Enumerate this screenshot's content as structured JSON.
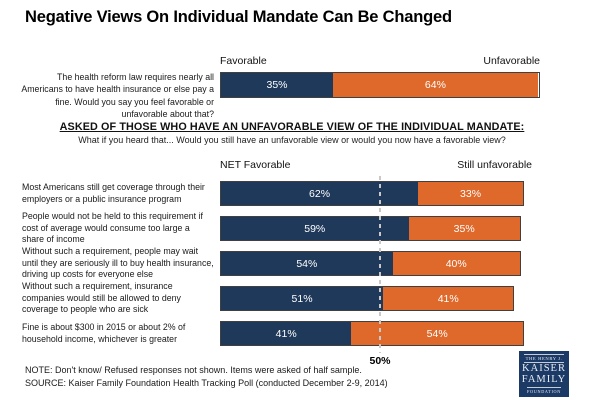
{
  "title": "Negative Views On Individual Mandate Can Be Changed",
  "colors": {
    "navy": "#1f395a",
    "orange": "#df682b",
    "bar_border": "#404040",
    "dash_line": "#c9c9c9",
    "logo_background": "#1b3a66"
  },
  "top_chart": {
    "left_header": "Favorable",
    "right_header": "Unfavorable",
    "question": "The health reform law requires nearly all Americans to have health insurance or else pay a fine. Would you say you feel favorable or unfavorable about that?"
  },
  "section": {
    "heading": "ASKED OF THOSE WHO HAVE AN UNFAVORABLE VIEW OF THE INDIVIDUAL MANDATE:",
    "subheading": "What if you heard that... Would you still have an unfavorable view or would you now have a favorable view?",
    "left_header": "NET Favorable",
    "right_header": "Still unfavorable"
  },
  "notes": {
    "note": "NOTE: Don't know/ Refused responses not shown. Items were asked of half sample.",
    "source": "SOURCE: Kaiser Family Foundation Health Tracking Poll (conducted December 2-9, 2014)"
  },
  "logo": {
    "top": "THE HENRY J.",
    "name1": "KAISER",
    "name2": "FAMILY",
    "bottom": "FOUNDATION"
  },
  "chart_data": {
    "type": "bar",
    "orientation": "horizontal",
    "stacked": true,
    "title": "Negative Views On Individual Mandate Can Be Changed",
    "xlim": [
      0,
      100
    ],
    "top_chart": {
      "question": "The health reform law requires nearly all Americans to have health insurance or else pay a fine. Would you say you feel favorable or unfavorable about that?",
      "series": [
        {
          "name": "Favorable",
          "value": 35,
          "label": "35%"
        },
        {
          "name": "Unfavorable",
          "value": 64,
          "label": "64%"
        }
      ]
    },
    "follow_up_chart": {
      "note": "Asked of those with an unfavorable view of the individual mandate",
      "categories": [
        "Most Americans still get coverage through their employers or a public insurance program",
        "People would not be held to this requirement if cost of average would consume too large a share of income",
        "Without such a requirement, people may wait until they are seriously ill to buy health insurance, driving up costs for everyone else",
        "Without such a requirement, insurance companies would still be allowed to deny coverage to people who are sick",
        "Fine is about $300 in 2015 or about 2% of household income, whichever is greater"
      ],
      "series": [
        {
          "name": "NET Favorable",
          "values": [
            62,
            59,
            54,
            51,
            41
          ]
        },
        {
          "name": "Still unfavorable",
          "values": [
            33,
            35,
            40,
            41,
            54
          ]
        }
      ],
      "reference_line": {
        "value": 50,
        "label": "50%"
      }
    }
  }
}
